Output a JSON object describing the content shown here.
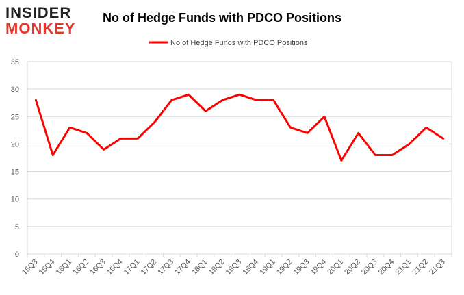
{
  "logo": {
    "top": "INSIDER",
    "bottom": "MONKEY"
  },
  "chart_data": {
    "type": "line",
    "title": "No of Hedge Funds with PDCO Positions",
    "xlabel": "",
    "ylabel": "",
    "ylim": [
      0,
      35
    ],
    "yticks": [
      0,
      5,
      10,
      15,
      20,
      25,
      30,
      35
    ],
    "grid": true,
    "legend_position": "top-center",
    "categories": [
      "15Q3",
      "15Q4",
      "16Q1",
      "16Q2",
      "16Q3",
      "16Q4",
      "17Q1",
      "17Q2",
      "17Q3",
      "17Q4",
      "18Q1",
      "18Q2",
      "18Q3",
      "18Q4",
      "19Q1",
      "19Q2",
      "19Q3",
      "19Q4",
      "20Q1",
      "20Q2",
      "20Q3",
      "20Q4",
      "21Q1",
      "21Q2",
      "21Q3"
    ],
    "series": [
      {
        "name": "No of Hedge Funds with PDCO Positions",
        "color": "#ff0000",
        "values": [
          28,
          18,
          23,
          22,
          19,
          21,
          21,
          24,
          28,
          29,
          26,
          28,
          29,
          28,
          28,
          23,
          22,
          25,
          17,
          22,
          18,
          18,
          20,
          23,
          21
        ]
      }
    ]
  }
}
